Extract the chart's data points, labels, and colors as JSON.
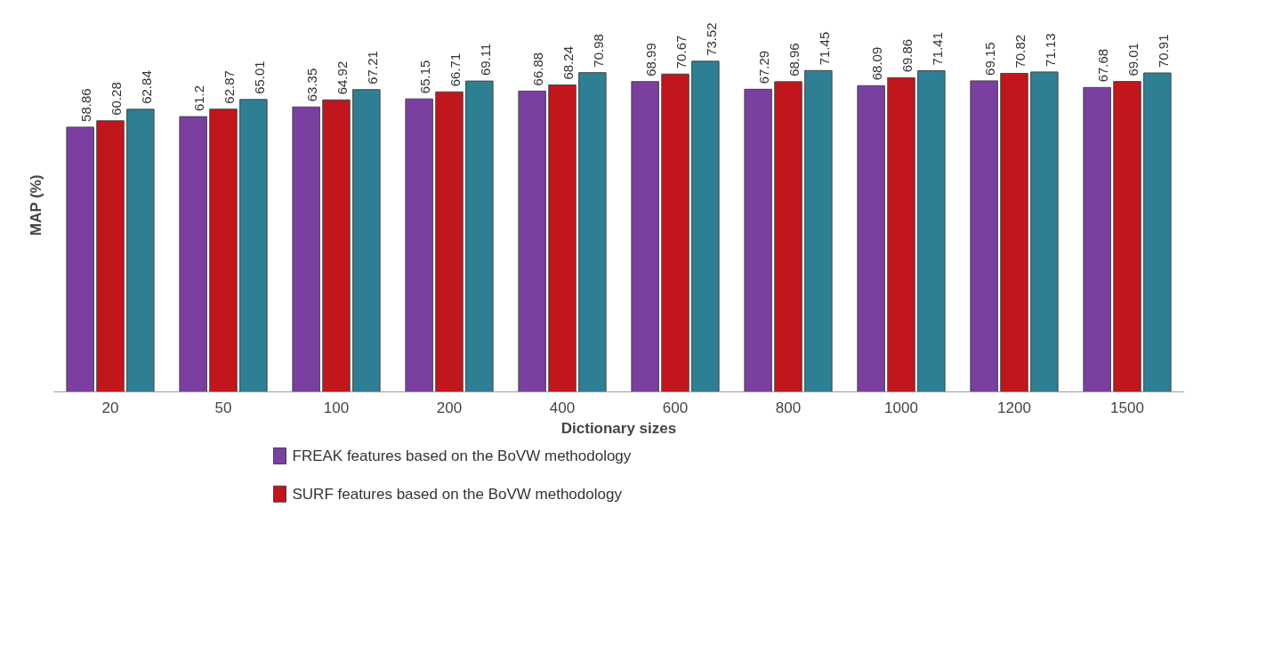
{
  "chart_data": {
    "type": "bar",
    "xlabel": "Dictionary sizes",
    "ylabel": "MAP (%)",
    "categories": [
      "20",
      "50",
      "100",
      "200",
      "400",
      "600",
      "800",
      "1000",
      "1200",
      "1500"
    ],
    "series": [
      {
        "name": "FREAK features based on the BoVW methodology",
        "color": "#7b3fa0",
        "values": [
          58.86,
          61.2,
          63.35,
          65.15,
          66.88,
          68.99,
          67.29,
          68.09,
          69.15,
          67.68
        ]
      },
      {
        "name": "SURF features based on the BoVW methodology",
        "color": "#c0161c",
        "values": [
          60.28,
          62.87,
          64.92,
          66.71,
          68.24,
          70.67,
          68.96,
          69.86,
          70.82,
          69.01
        ]
      },
      {
        "color": "#2e7f93",
        "values": [
          62.84,
          65.01,
          67.21,
          69.11,
          70.98,
          73.52,
          71.45,
          71.41,
          71.13,
          70.91
        ]
      }
    ],
    "data_labels": true,
    "grid": false,
    "legend": "bottom",
    "tick_labels": "x"
  }
}
